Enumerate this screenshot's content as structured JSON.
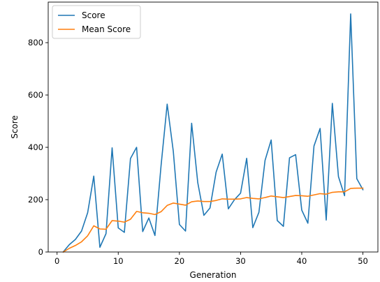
{
  "chart_data": {
    "type": "line",
    "xlabel": "Generation",
    "ylabel": "Score",
    "xlim": [
      -1.45,
      52.45
    ],
    "ylim": [
      0,
      955
    ],
    "xticks": [
      0,
      10,
      20,
      30,
      40,
      50
    ],
    "yticks": [
      0,
      200,
      400,
      600,
      800
    ],
    "grid": false,
    "legend_position": "top-left",
    "x": [
      1,
      2,
      3,
      4,
      5,
      6,
      7,
      8,
      9,
      10,
      11,
      12,
      13,
      14,
      15,
      16,
      17,
      18,
      19,
      20,
      21,
      22,
      23,
      24,
      25,
      26,
      27,
      28,
      29,
      30,
      31,
      32,
      33,
      34,
      35,
      36,
      37,
      38,
      39,
      40,
      41,
      42,
      43,
      44,
      45,
      46,
      47,
      48,
      49,
      50
    ],
    "series": [
      {
        "name": "Score",
        "color": "#1f77b4",
        "values": [
          0,
          28,
          48,
          80,
          150,
          290,
          18,
          70,
          398,
          92,
          75,
          357,
          400,
          78,
          130,
          63,
          330,
          565,
          385,
          105,
          80,
          492,
          265,
          140,
          168,
          305,
          374,
          165,
          200,
          225,
          358,
          93,
          152,
          350,
          428,
          120,
          98,
          360,
          372,
          160,
          110,
          405,
          472,
          122,
          568,
          288,
          215,
          910,
          280,
          238
        ]
      },
      {
        "name": "Mean Score",
        "color": "#ff7f0e",
        "values": [
          0,
          14,
          25,
          39,
          62,
          100,
          88,
          87,
          120,
          118,
          114,
          125,
          155,
          150,
          148,
          143,
          154,
          178,
          187,
          183,
          179,
          192,
          195,
          193,
          193,
          197,
          203,
          202,
          202,
          203,
          208,
          205,
          203,
          208,
          214,
          211,
          208,
          212,
          216,
          215,
          213,
          218,
          223,
          221,
          228,
          230,
          230,
          243,
          244,
          244
        ]
      }
    ]
  }
}
